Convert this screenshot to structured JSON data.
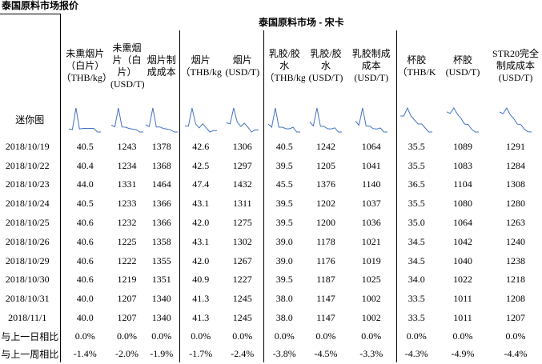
{
  "page_title": "泰国原料市场报价",
  "table_title": "泰国原料市场 - 宋卡",
  "columns": [
    "未熏烟片（白片）（THB/kg）",
    "未熏烟片（白片）(USD/T)",
    "烟片制成成本",
    "烟片（THB/kg）",
    "烟片(USD/T)",
    "乳胶/胶水（THB/kg）",
    "乳胶/胶水(USD/T)",
    "乳胶制成成本(USD/T)",
    "杯胶（THB/KG）",
    "杯胶(USD/T)",
    "STR20完全制成成本(USD/T)"
  ],
  "spark_label": "迷你图",
  "rows": [
    {
      "date": "2018/10/19",
      "values": [
        "40.5",
        "1243",
        "1378",
        "42.6",
        "1306",
        "40.5",
        "1242",
        "1064",
        "35.5",
        "1089",
        "1291"
      ]
    },
    {
      "date": "2018/10/22",
      "values": [
        "40.4",
        "1234",
        "1368",
        "42.5",
        "1297",
        "39.5",
        "1205",
        "1041",
        "35.5",
        "1083",
        "1284"
      ]
    },
    {
      "date": "2018/10/23",
      "values": [
        "44.0",
        "1331",
        "1464",
        "47.4",
        "1432",
        "45.5",
        "1376",
        "1140",
        "36.5",
        "1104",
        "1308"
      ]
    },
    {
      "date": "2018/10/24",
      "values": [
        "40.5",
        "1233",
        "1366",
        "43.1",
        "1311",
        "39.5",
        "1202",
        "1037",
        "35.5",
        "1080",
        "1280"
      ]
    },
    {
      "date": "2018/10/25",
      "values": [
        "40.6",
        "1232",
        "1366",
        "42.0",
        "1275",
        "39.5",
        "1200",
        "1036",
        "35.0",
        "1064",
        "1263"
      ]
    },
    {
      "date": "2018/10/26",
      "values": [
        "40.6",
        "1225",
        "1358",
        "43.1",
        "1302",
        "39.0",
        "1178",
        "1021",
        "34.5",
        "1042",
        "1240"
      ]
    },
    {
      "date": "2018/10/29",
      "values": [
        "40.6",
        "1222",
        "1355",
        "42.0",
        "1267",
        "39.0",
        "1176",
        "1019",
        "34.5",
        "1040",
        "1238"
      ]
    },
    {
      "date": "2018/10/30",
      "values": [
        "40.6",
        "1219",
        "1351",
        "40.9",
        "1227",
        "39.5",
        "1187",
        "1025",
        "34.0",
        "1022",
        "1218"
      ]
    },
    {
      "date": "2018/10/31",
      "values": [
        "40.0",
        "1207",
        "1340",
        "41.3",
        "1245",
        "38.0",
        "1147",
        "1002",
        "33.5",
        "1011",
        "1208"
      ]
    },
    {
      "date": "2018/11/1",
      "values": [
        "40.0",
        "1207",
        "1340",
        "41.3",
        "1245",
        "38.0",
        "1147",
        "1002",
        "33.5",
        "1011",
        "1207"
      ]
    }
  ],
  "comparisons": [
    {
      "label": "与上一日相比",
      "values": [
        "0.0%",
        "0.0%",
        "0.0%",
        "0.0%",
        "0.0%",
        "0.0%",
        "0.0%",
        "0.0%",
        "0.0%",
        "0.0%",
        "0.0%"
      ]
    },
    {
      "label": "与上一周相比",
      "values": [
        "-1.4%",
        "-2.0%",
        "-1.9%",
        "-1.7%",
        "-2.4%",
        "-3.8%",
        "-4.5%",
        "-3.3%",
        "-4.3%",
        "-4.9%",
        "-4.4%"
      ]
    }
  ],
  "colors": {
    "line": "#4472c4",
    "border": "#000000"
  }
}
